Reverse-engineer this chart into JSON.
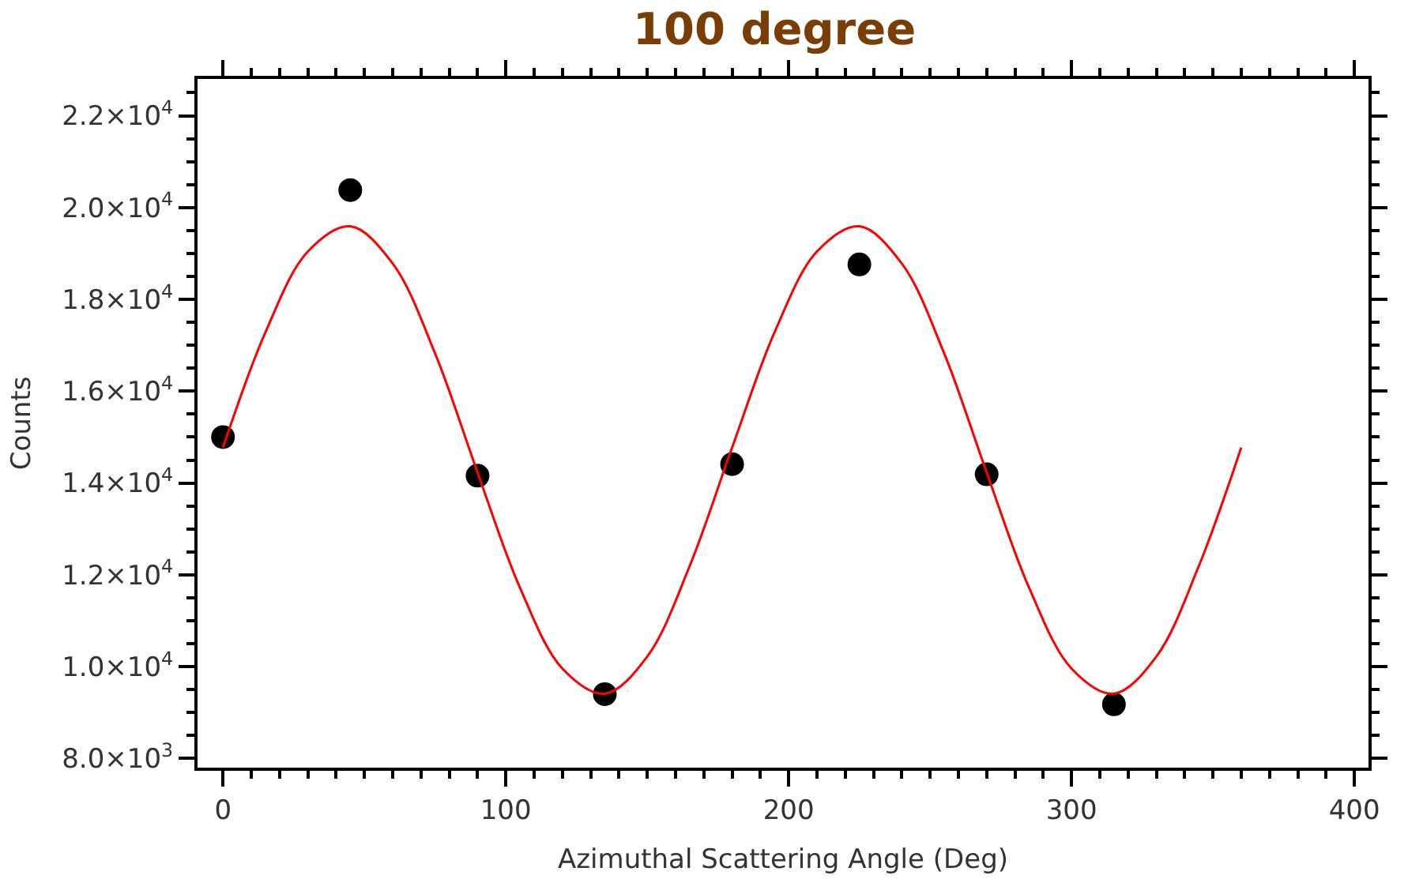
{
  "chart_data": {
    "type": "scatter",
    "title": "100 degree",
    "xlabel": "Azimuthal Scattering Angle (Deg)",
    "ylabel": "Counts",
    "xlim": [
      -9,
      405
    ],
    "xticks": [
      0,
      100,
      200,
      300,
      400
    ],
    "ylim": [
      7800,
      22800
    ],
    "yticks": [
      {
        "value": 8000,
        "label": "8.0×10$^{3}$"
      },
      {
        "value": 10000,
        "label": "1.0×10$^{4}$"
      },
      {
        "value": 12000,
        "label": "1.2×10$^{4}$"
      },
      {
        "value": 14000,
        "label": "1.4×10$^{4}$"
      },
      {
        "value": 16000,
        "label": "1.6×10$^{4}$"
      },
      {
        "value": 18000,
        "label": "1.8×10$^{4}$"
      },
      {
        "value": 20000,
        "label": "2.0×10$^{4}$"
      },
      {
        "value": 22000,
        "label": "2.2×10$^{4}$"
      }
    ],
    "marker": "circle",
    "series": [
      {
        "color": "#000000",
        "x": [
          0,
          45,
          90,
          135,
          180,
          225,
          270,
          315
        ],
        "values": [
          15000,
          20380,
          14160,
          9400,
          14410,
          18760,
          14190,
          9180
        ]
      },
      {
        "type": "line",
        "color": "#ff0000",
        "marker": "none",
        "line_style": "solid",
        "x": [
          0,
          15,
          30,
          45,
          60,
          75,
          90,
          105,
          120,
          135,
          150,
          165,
          180,
          195,
          210,
          225,
          240,
          255,
          270,
          285,
          300,
          315,
          330,
          345,
          360
        ],
        "values": [
          14770,
          17280,
          19040,
          19590,
          18780,
          16820,
          14230,
          11720,
          9960,
          9410,
          10220,
          12190,
          14770,
          17280,
          19040,
          19590,
          18780,
          16820,
          14230,
          11720,
          9960,
          9410,
          10220,
          12190,
          14770
        ]
      }
    ]
  }
}
